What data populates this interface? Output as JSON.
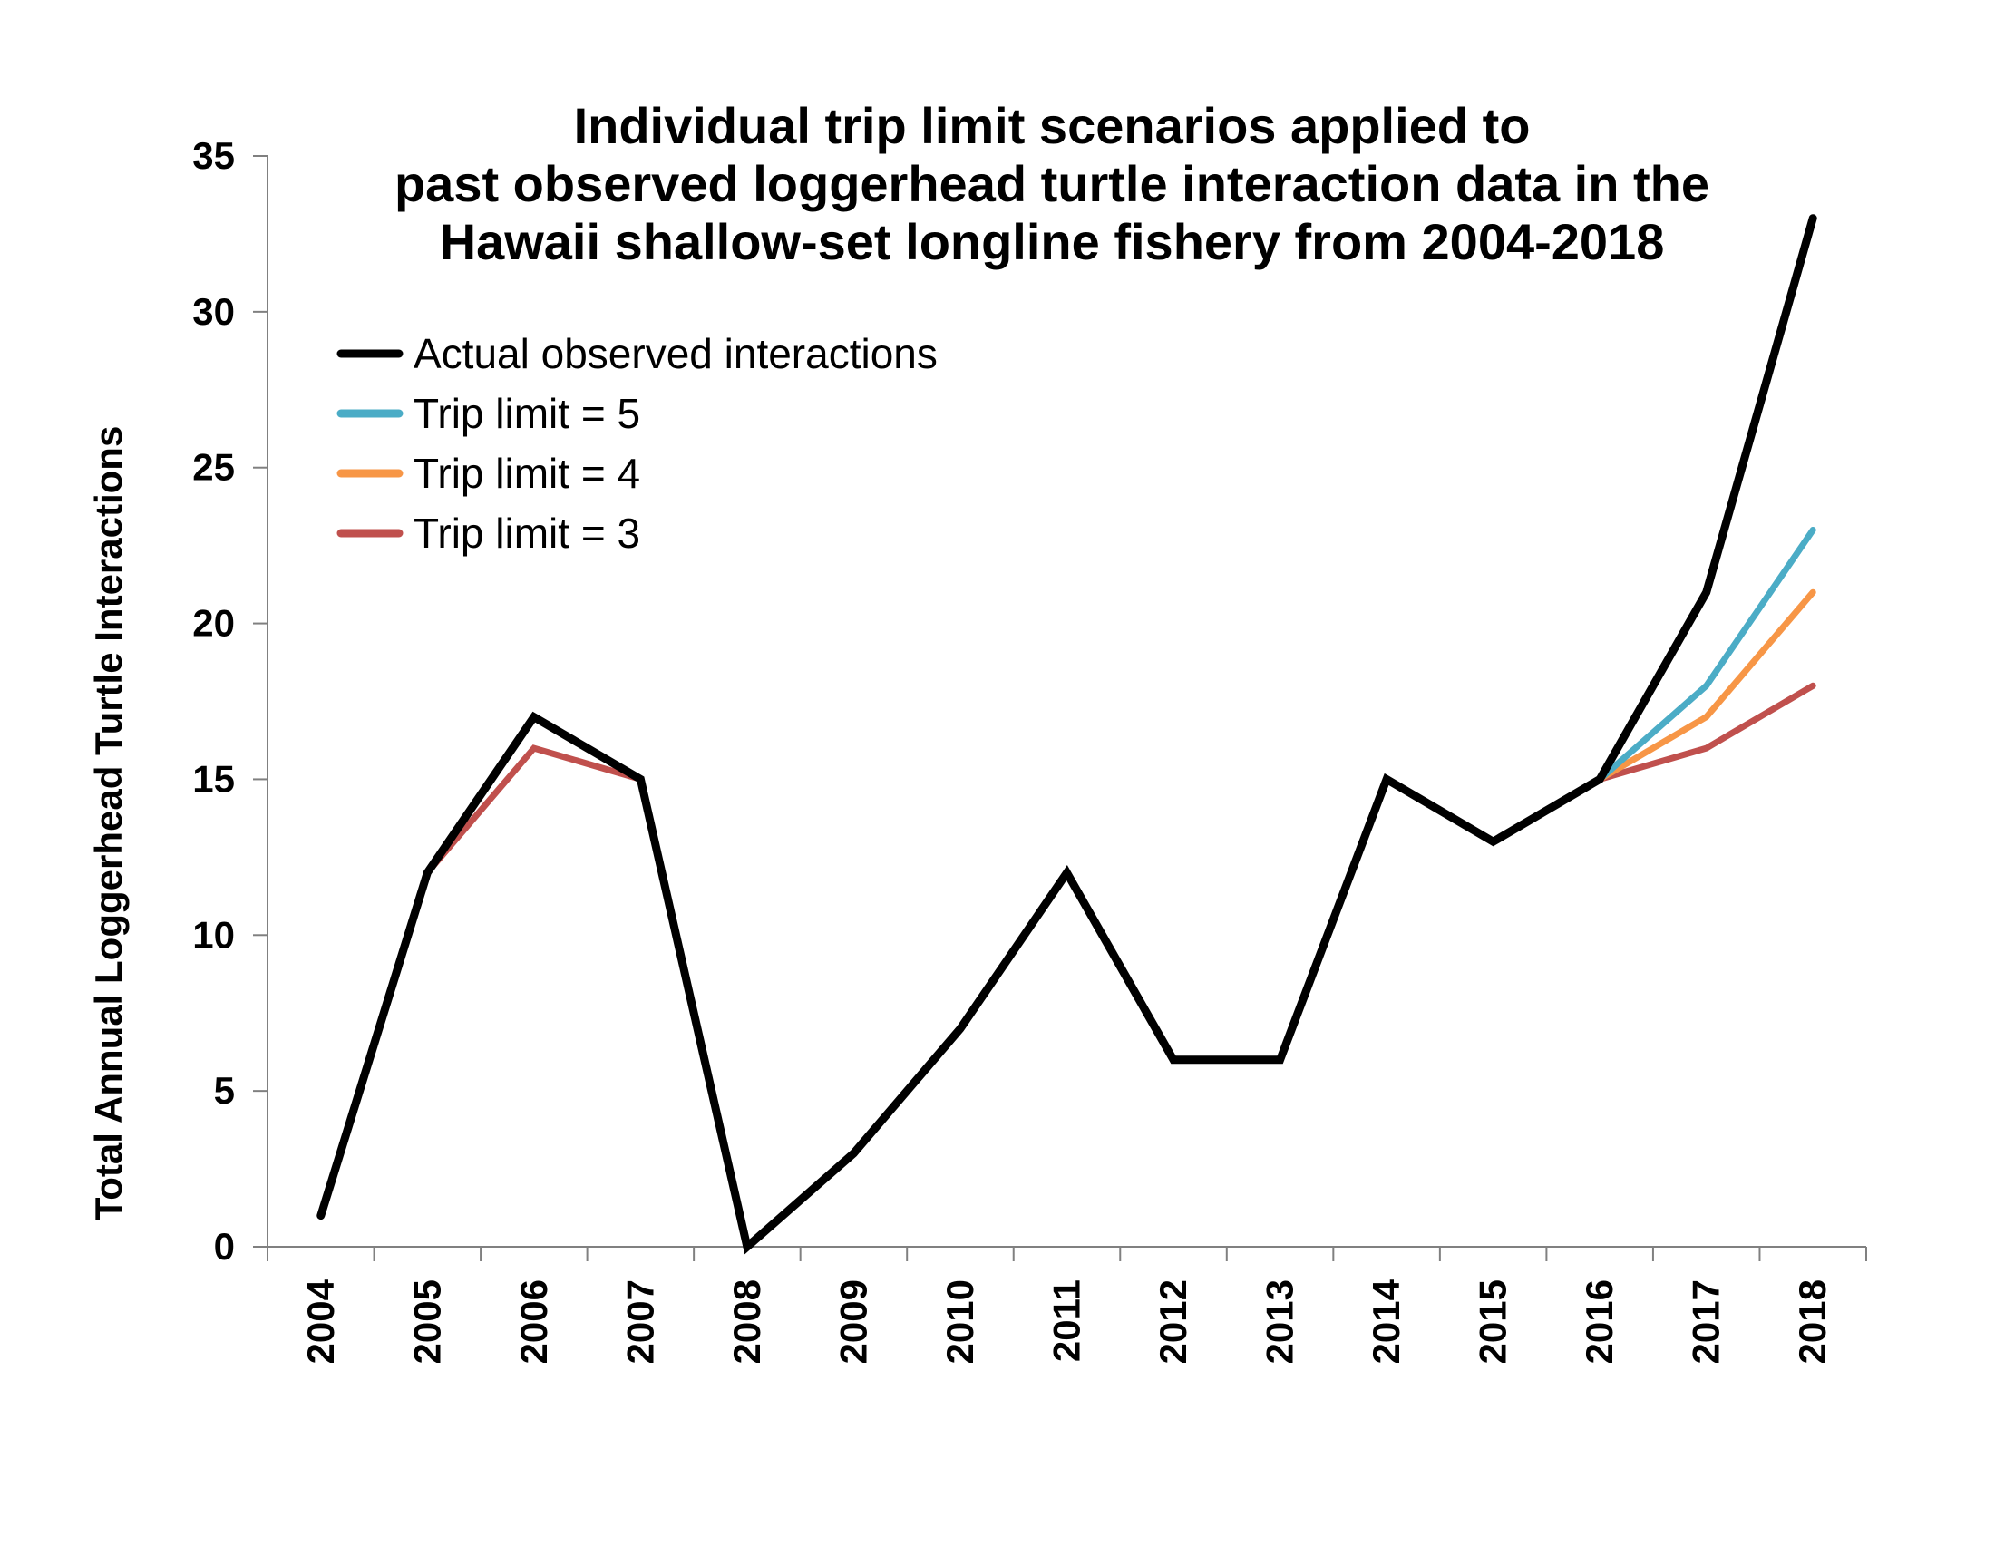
{
  "chart_data": {
    "type": "line",
    "title_lines": [
      "Individual trip limit scenarios applied to",
      "past observed loggerhead turtle interaction data in the",
      "Hawaii shallow-set longline fishery from 2004-2018"
    ],
    "xlabel": "",
    "ylabel": "Total Annual Loggerhead Turtle Interactions",
    "ylim": [
      0,
      35
    ],
    "yticks": [
      "0",
      "5",
      "10",
      "15",
      "20",
      "25",
      "30",
      "35"
    ],
    "categories": [
      "2004",
      "2005",
      "2006",
      "2007",
      "2008",
      "2009",
      "2010",
      "2011",
      "2012",
      "2013",
      "2014",
      "2015",
      "2016",
      "2017",
      "2018"
    ],
    "grid": false,
    "legend_position": "top-left",
    "series": [
      {
        "name": "Trip limit = 3",
        "color": "#c0504d",
        "values": [
          null,
          12,
          16,
          15,
          null,
          null,
          null,
          null,
          null,
          null,
          null,
          null,
          15,
          16,
          18
        ]
      },
      {
        "name": "Trip limit = 4",
        "color": "#f79646",
        "values": [
          null,
          null,
          null,
          null,
          null,
          null,
          null,
          null,
          null,
          null,
          null,
          null,
          15,
          17,
          21
        ]
      },
      {
        "name": "Trip limit = 5",
        "color": "#4bacc6",
        "values": [
          null,
          null,
          null,
          null,
          null,
          null,
          null,
          null,
          null,
          null,
          null,
          null,
          15,
          18,
          23
        ]
      },
      {
        "name": "Actual observed interactions",
        "color": "#000000",
        "values": [
          1,
          12,
          17,
          15,
          0,
          3,
          7,
          12,
          6,
          6,
          15,
          13,
          15,
          21,
          33
        ]
      }
    ],
    "legend_order": [
      3,
      2,
      1,
      0
    ]
  }
}
